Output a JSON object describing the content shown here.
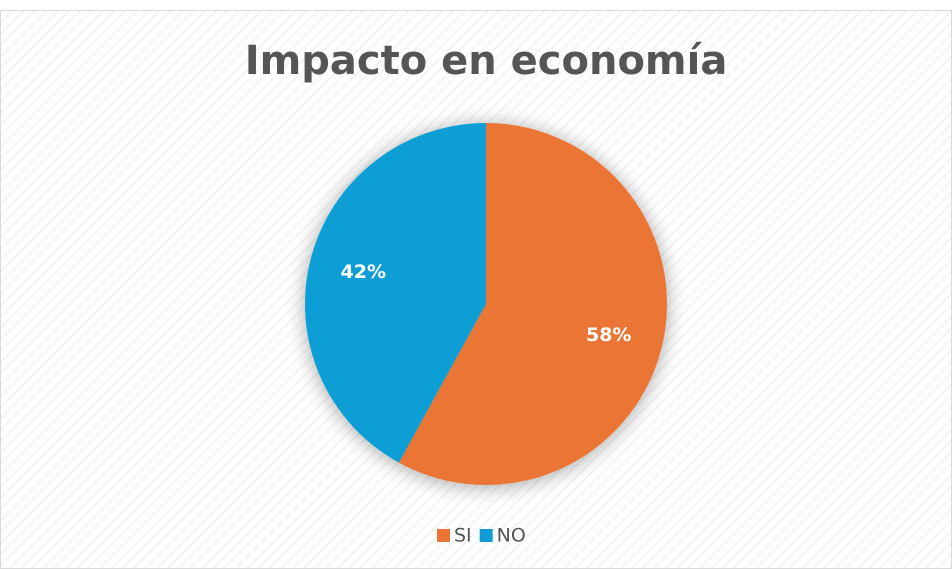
{
  "chart_data": {
    "type": "pie",
    "title": "Impacto en economía",
    "categories": [
      "SI",
      "NO"
    ],
    "values": [
      58,
      42
    ],
    "value_labels": [
      "58%",
      "42%"
    ],
    "colors": [
      "#ea7434",
      "#119ed6"
    ],
    "legend": "bottom"
  }
}
